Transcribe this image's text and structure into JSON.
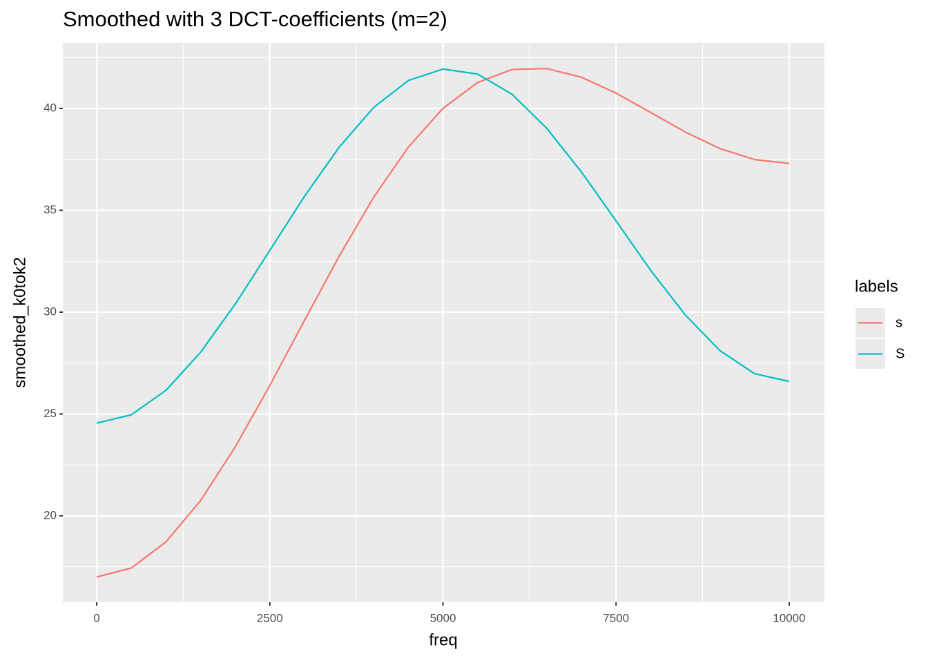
{
  "chart_data": {
    "type": "line",
    "title": "Smoothed with 3 DCT-coefficients (m=2)",
    "x_label": "freq",
    "y_label": "smoothed_k0tok2",
    "legend_title": "labels",
    "legend": "right",
    "grid": true,
    "x": [
      0,
      500,
      1000,
      1500,
      2000,
      2500,
      3000,
      3500,
      4000,
      4500,
      5000,
      5500,
      6000,
      6500,
      7000,
      7500,
      8000,
      8500,
      9000,
      9500,
      10000
    ],
    "series": [
      {
        "name": "s",
        "color": "#F8766D",
        "values": [
          17.0,
          17.44,
          18.72,
          20.75,
          23.38,
          26.4,
          29.59,
          32.74,
          35.64,
          38.1,
          40.0,
          41.27,
          41.91,
          41.96,
          41.53,
          40.75,
          39.8,
          38.84,
          38.03,
          37.49,
          37.3
        ]
      },
      {
        "name": "S",
        "color": "#00BFC4",
        "values": [
          24.55,
          24.96,
          26.16,
          28.03,
          30.39,
          33.03,
          35.68,
          38.09,
          40.05,
          41.37,
          41.93,
          41.69,
          40.69,
          39.02,
          36.88,
          34.48,
          32.05,
          29.86,
          28.11,
          26.98,
          26.6
        ]
      }
    ],
    "xlim": [
      -489,
      10509
    ],
    "xticks": [
      0,
      2500,
      5000,
      7500,
      10000
    ],
    "ylim": [
      15.76,
      43.22
    ],
    "yticks": [
      20,
      25,
      30,
      35,
      40
    ]
  }
}
